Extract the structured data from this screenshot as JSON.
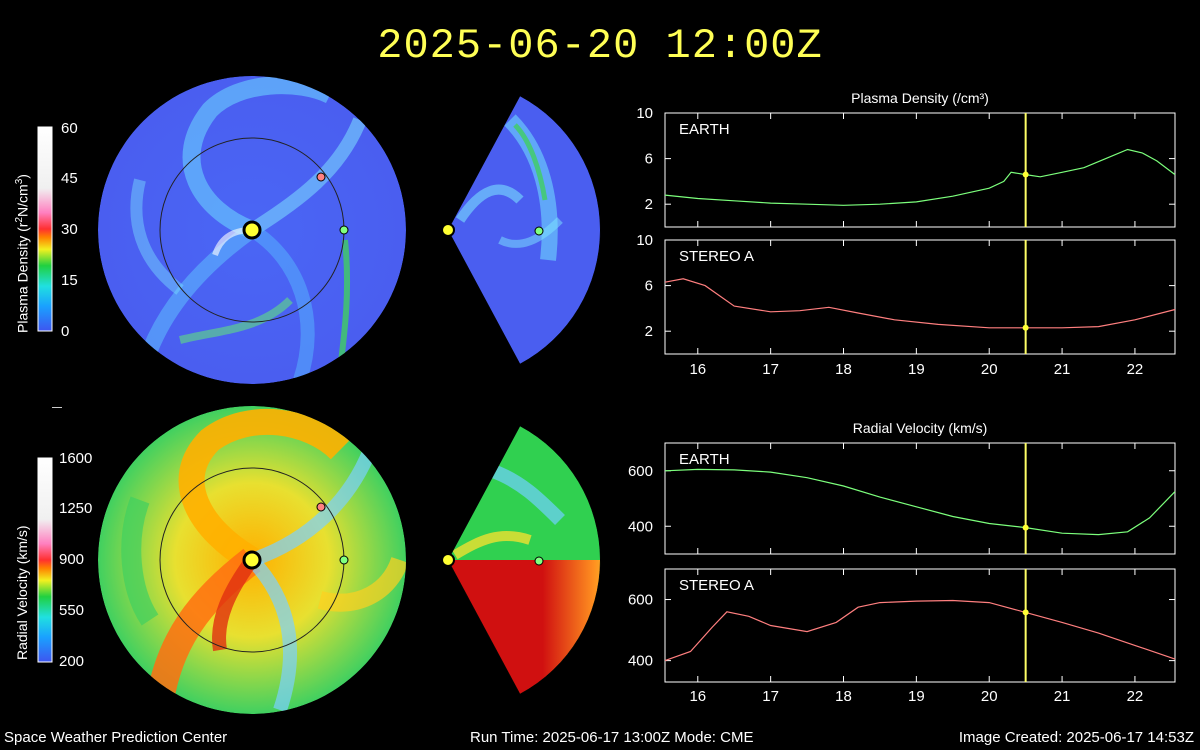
{
  "title": "2025-06-20 12:00Z",
  "footer": {
    "left": "Space Weather Prediction Center",
    "middle": "Run Time: 2025-06-17 13:00Z  Mode: CME",
    "right": "Image Created: 2025-06-17 14:53Z"
  },
  "colorbars": {
    "density": {
      "label_html": "Plasma Density (r²N/cm³)",
      "ticks": [
        "60",
        "45",
        "30",
        "15",
        "0"
      ]
    },
    "velocity": {
      "label": "Radial Velocity (km/s)",
      "ticks": [
        "1600",
        "1250",
        "900",
        "550",
        "200"
      ]
    }
  },
  "colors": {
    "title": "#ffff55",
    "earth_line": "#7cff7c",
    "stereo_line": "#ff7f7f",
    "marker_line": "#ffff66"
  },
  "chart_data": [
    {
      "type": "line",
      "title": "Plasma Density (/cm³)",
      "panel": "EARTH",
      "x_ticks": [
        16,
        17,
        18,
        19,
        20,
        21,
        22
      ],
      "xlim": [
        15.55,
        22.55
      ],
      "ylim": [
        0,
        10
      ],
      "y_ticks": [
        2,
        6,
        10
      ],
      "current_time": 20.5,
      "x": [
        15.55,
        16.0,
        16.5,
        17.0,
        17.5,
        18.0,
        18.5,
        19.0,
        19.5,
        20.0,
        20.2,
        20.3,
        20.5,
        20.7,
        21.0,
        21.3,
        21.6,
        21.9,
        22.1,
        22.3,
        22.55
      ],
      "y": [
        2.8,
        2.5,
        2.3,
        2.1,
        2.0,
        1.9,
        2.0,
        2.2,
        2.7,
        3.4,
        4.0,
        4.8,
        4.6,
        4.4,
        4.8,
        5.2,
        6.0,
        6.8,
        6.5,
        5.8,
        4.6
      ]
    },
    {
      "type": "line",
      "title": "",
      "panel": "STEREO A",
      "x_ticks": [
        16,
        17,
        18,
        19,
        20,
        21,
        22
      ],
      "xlim": [
        15.55,
        22.55
      ],
      "ylim": [
        0,
        10
      ],
      "y_ticks": [
        2,
        6,
        10
      ],
      "current_time": 20.5,
      "x": [
        15.55,
        15.8,
        16.1,
        16.5,
        17.0,
        17.4,
        17.8,
        18.2,
        18.7,
        19.3,
        20.0,
        20.5,
        21.0,
        21.5,
        22.0,
        22.55
      ],
      "y": [
        6.3,
        6.6,
        6.0,
        4.2,
        3.7,
        3.8,
        4.1,
        3.6,
        3.0,
        2.6,
        2.3,
        2.3,
        2.3,
        2.4,
        3.0,
        3.9
      ]
    },
    {
      "type": "line",
      "title": "Radial Velocity (km/s)",
      "panel": "EARTH",
      "x_ticks": [
        16,
        17,
        18,
        19,
        20,
        21,
        22
      ],
      "xlim": [
        15.55,
        22.55
      ],
      "ylim": [
        300,
        700
      ],
      "y_ticks": [
        400,
        600
      ],
      "current_time": 20.5,
      "x": [
        15.55,
        16.0,
        16.5,
        17.0,
        17.5,
        18.0,
        18.5,
        19.0,
        19.5,
        20.0,
        20.5,
        21.0,
        21.5,
        21.9,
        22.2,
        22.55
      ],
      "y": [
        600,
        605,
        603,
        595,
        575,
        545,
        505,
        470,
        435,
        410,
        395,
        375,
        370,
        380,
        430,
        525
      ]
    },
    {
      "type": "line",
      "title": "",
      "panel": "STEREO A",
      "x_ticks": [
        16,
        17,
        18,
        19,
        20,
        21,
        22
      ],
      "xlim": [
        15.55,
        22.55
      ],
      "ylim": [
        330,
        700
      ],
      "y_ticks": [
        400,
        600
      ],
      "current_time": 20.5,
      "x": [
        15.55,
        15.9,
        16.2,
        16.4,
        16.7,
        17.0,
        17.5,
        17.9,
        18.2,
        18.5,
        19.0,
        19.5,
        20.0,
        20.5,
        21.0,
        21.5,
        22.0,
        22.55
      ],
      "y": [
        400,
        430,
        510,
        560,
        545,
        515,
        495,
        525,
        575,
        590,
        595,
        597,
        590,
        558,
        525,
        490,
        450,
        405
      ]
    }
  ]
}
